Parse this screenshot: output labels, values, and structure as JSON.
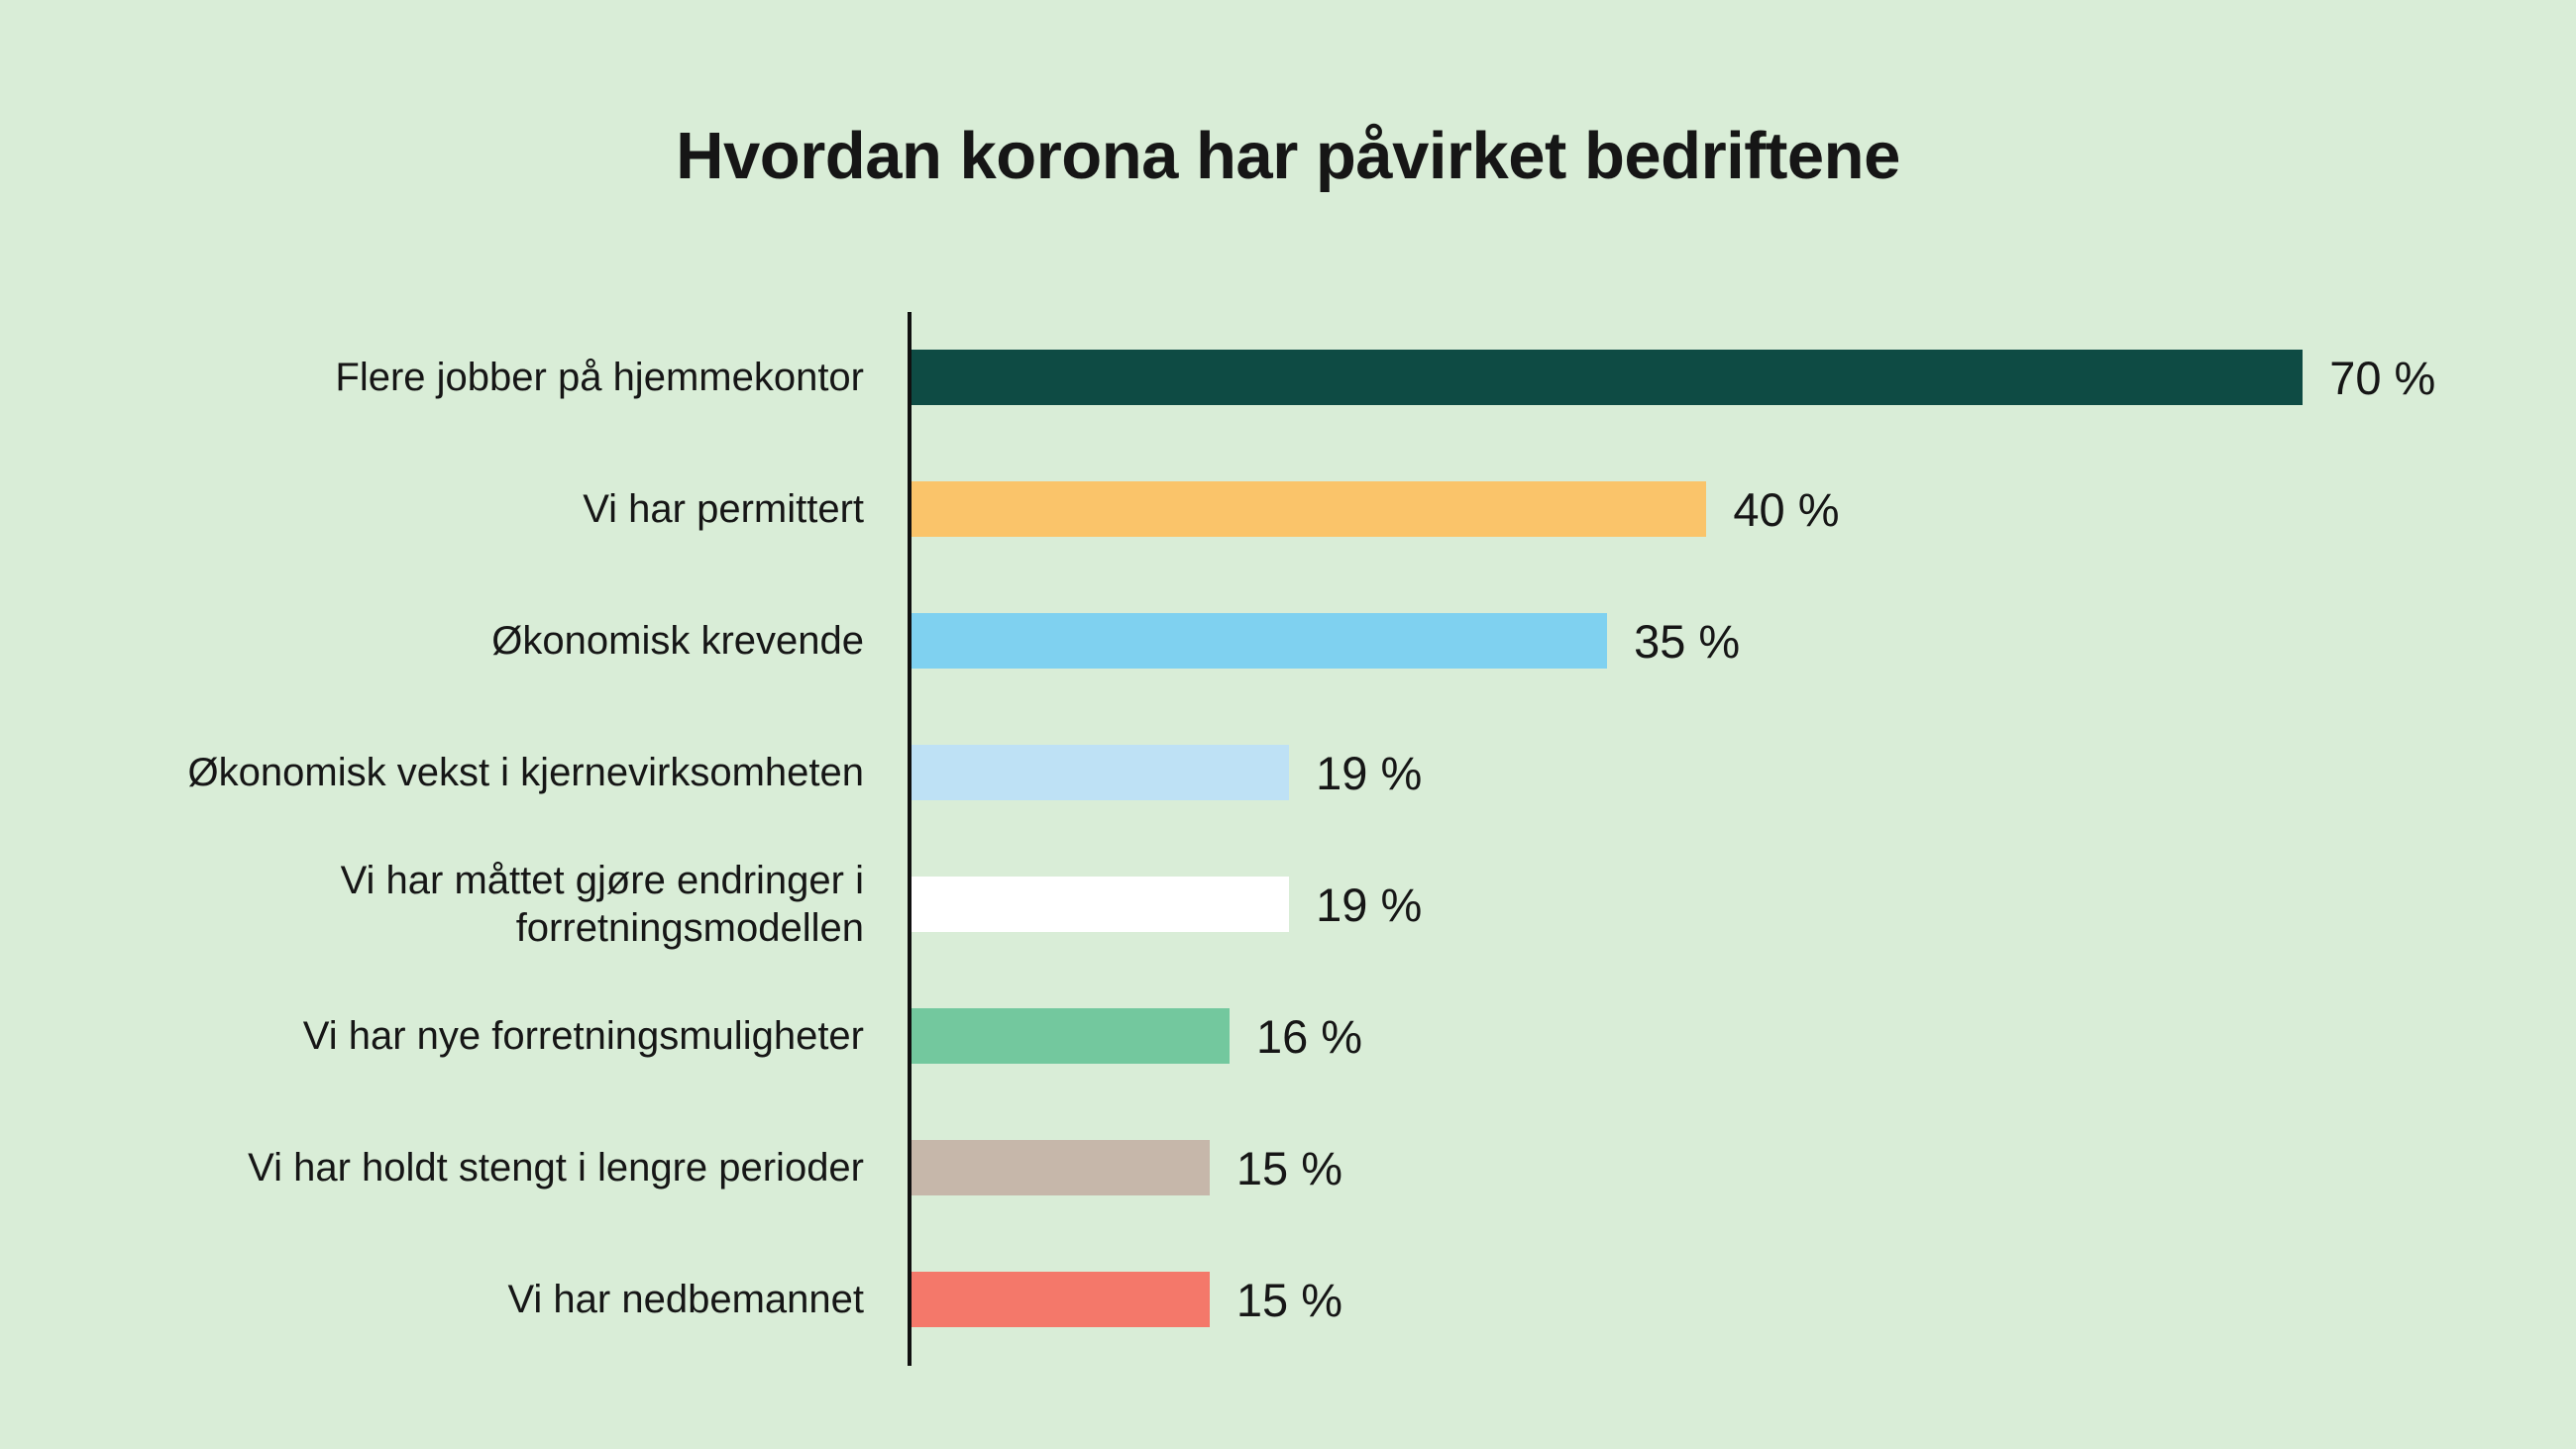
{
  "colors": {
    "background": "#d9edd7",
    "text": "#161616",
    "axis_line": "#101010"
  },
  "chart_data": {
    "type": "bar",
    "orientation": "horizontal",
    "title": "Hvordan korona har påvirket bedriftene",
    "categories": [
      "Flere jobber på hjemmekontor",
      "Vi har permittert",
      "Økonomisk krevende",
      "Økonomisk vekst i kjernevirksomheten",
      "Vi har måttet gjøre endringer i forretningsmodellen",
      "Vi har nye forretningsmuligheter",
      "Vi har holdt stengt i lengre perioder",
      "Vi har nedbemannet"
    ],
    "values": [
      70,
      40,
      35,
      19,
      19,
      16,
      15,
      15
    ],
    "display_values": [
      "70 %",
      "40 %",
      "35 %",
      "19 %",
      "19 %",
      "16 %",
      "15 %",
      "15 %"
    ],
    "bar_colors": [
      "#0e4b44",
      "#fac46a",
      "#7fd1f0",
      "#bee1f5",
      "#ffffff",
      "#73c89e",
      "#c6b7aa",
      "#f4786a"
    ],
    "unit": "%",
    "xlim": [
      0,
      84
    ],
    "grid": "off",
    "legend": "none",
    "value_label_position": "right of bar end",
    "axis_style": "single vertical baseline on left, no tick labels"
  }
}
